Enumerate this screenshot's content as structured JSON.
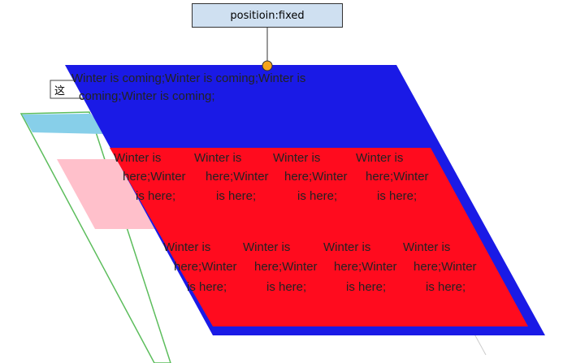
{
  "label": {
    "text": "positioin:fixed"
  },
  "fixed_layer": {
    "lines": [
      "Winter is coming;Winter is coming;Winter is",
      "coming;Winter is coming;"
    ]
  },
  "red_layer": {
    "rows": [
      [
        [
          "Winter is",
          "here;Winter",
          "is here;"
        ],
        [
          "Winter is",
          "here;Winter",
          "is here;"
        ],
        [
          "Winter is",
          "here;Winter",
          "is here;"
        ],
        [
          "Winter is",
          "here;Winter",
          "is here;"
        ]
      ],
      [
        [
          "Winter is",
          "here;Winter",
          "is here;"
        ],
        [
          "Winter is",
          "here;Winter",
          "is here;"
        ],
        [
          "Winter is",
          "here;Winter",
          "is here;"
        ],
        [
          "Winter is",
          "here;Winter",
          "is here;"
        ]
      ]
    ]
  },
  "back_layer": {
    "glyph": "这"
  },
  "colors": {
    "blue": "#1a1ae6",
    "red": "#ff0b1e",
    "sky_header": "#87cfe9",
    "pink": "#ffc0cb",
    "green_edge": "#5cbd5c",
    "orange_dot": "#f5a51c",
    "label_bg": "#cfe0f1"
  }
}
